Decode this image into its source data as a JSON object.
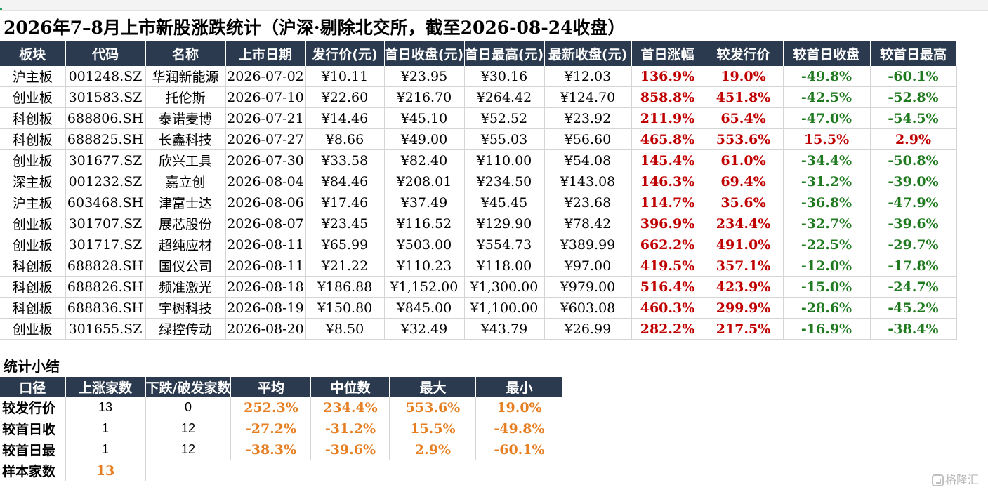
{
  "title": "2026年7–8月上市新股涨跌统计（沪深·剔除北交所，截至2026-08-24收盘）",
  "main_table": {
    "headers": [
      "板块",
      "代码",
      "名称",
      "上市日期",
      "发行价(元)",
      "首日收盘(元)",
      "首日最高(元)",
      "最新收盘(元)",
      "首日涨幅",
      "较发行价",
      "较首日收盘",
      "较首日最高"
    ],
    "rows": [
      [
        "沪主板",
        "001248.SZ",
        "华润新能源",
        "2026-07-02",
        "¥10.11",
        "¥23.95",
        "¥30.16",
        "¥12.03",
        "136.9%",
        "19.0%",
        "-49.8%",
        "-60.1%"
      ],
      [
        "创业板",
        "301583.SZ",
        "托伦斯",
        "2026-07-10",
        "¥22.60",
        "¥216.70",
        "¥264.42",
        "¥124.70",
        "858.8%",
        "451.8%",
        "-42.5%",
        "-52.8%"
      ],
      [
        "科创板",
        "688806.SH",
        "泰诺麦博",
        "2026-07-21",
        "¥14.46",
        "¥45.10",
        "¥52.52",
        "¥23.92",
        "211.9%",
        "65.4%",
        "-47.0%",
        "-54.5%"
      ],
      [
        "科创板",
        "688825.SH",
        "长鑫科技",
        "2026-07-27",
        "¥8.66",
        "¥49.00",
        "¥55.03",
        "¥56.60",
        "465.8%",
        "553.6%",
        "15.5%",
        "2.9%"
      ],
      [
        "创业板",
        "301677.SZ",
        "欣兴工具",
        "2026-07-30",
        "¥33.58",
        "¥82.40",
        "¥110.00",
        "¥54.08",
        "145.4%",
        "61.0%",
        "-34.4%",
        "-50.8%"
      ],
      [
        "深主板",
        "001232.SZ",
        "嘉立创",
        "2026-08-04",
        "¥84.46",
        "¥208.01",
        "¥234.50",
        "¥143.08",
        "146.3%",
        "69.4%",
        "-31.2%",
        "-39.0%"
      ],
      [
        "沪主板",
        "603468.SH",
        "津富士达",
        "2026-08-06",
        "¥17.46",
        "¥37.49",
        "¥45.45",
        "¥23.68",
        "114.7%",
        "35.6%",
        "-36.8%",
        "-47.9%"
      ],
      [
        "创业板",
        "301707.SZ",
        "展芯股份",
        "2026-08-07",
        "¥23.45",
        "¥116.52",
        "¥129.90",
        "¥78.42",
        "396.9%",
        "234.4%",
        "-32.7%",
        "-39.6%"
      ],
      [
        "创业板",
        "301717.SZ",
        "超纯应材",
        "2026-08-11",
        "¥65.99",
        "¥503.00",
        "¥554.73",
        "¥389.99",
        "662.2%",
        "491.0%",
        "-22.5%",
        "-29.7%"
      ],
      [
        "科创板",
        "688828.SH",
        "国仪公司",
        "2026-08-11",
        "¥21.22",
        "¥110.23",
        "¥118.00",
        "¥97.00",
        "419.5%",
        "357.1%",
        "-12.0%",
        "-17.8%"
      ],
      [
        "科创板",
        "688826.SH",
        "频准激光",
        "2026-08-18",
        "¥186.88",
        "¥1,152.00",
        "¥1,300.00",
        "¥979.00",
        "516.4%",
        "423.9%",
        "-15.0%",
        "-24.7%"
      ],
      [
        "科创板",
        "688836.SH",
        "宇树科技",
        "2026-08-19",
        "¥150.80",
        "¥845.00",
        "¥1,100.00",
        "¥603.08",
        "460.3%",
        "299.9%",
        "-28.6%",
        "-45.2%"
      ],
      [
        "创业板",
        "301655.SZ",
        "绿控传动",
        "2026-08-20",
        "¥8.50",
        "¥32.49",
        "¥43.79",
        "¥26.99",
        "282.2%",
        "217.5%",
        "-16.9%",
        "-38.4%"
      ]
    ]
  },
  "summary": {
    "title": "统计小结",
    "headers": [
      "口径",
      "上涨家数",
      "下跌/破发家数",
      "平均",
      "中位数",
      "最大",
      "最小"
    ],
    "rows": [
      [
        "较发行价",
        "13",
        "0",
        "252.3%",
        "234.4%",
        "553.6%",
        "19.0%"
      ],
      [
        "较首日收",
        "1",
        "12",
        "-27.2%",
        "-31.2%",
        "15.5%",
        "-49.8%"
      ],
      [
        "较首日最",
        "1",
        "12",
        "-38.3%",
        "-39.6%",
        "2.9%",
        "-60.1%"
      ]
    ],
    "sample_label": "样本家数",
    "sample_value": "13"
  },
  "watermark": "格隆汇",
  "colors": {
    "header_bg": "#2b3a4e",
    "positive": "#c00000",
    "negative": "#1f7a1f",
    "summary_stat": "#e67e22",
    "grid": "#d5d5d5"
  }
}
